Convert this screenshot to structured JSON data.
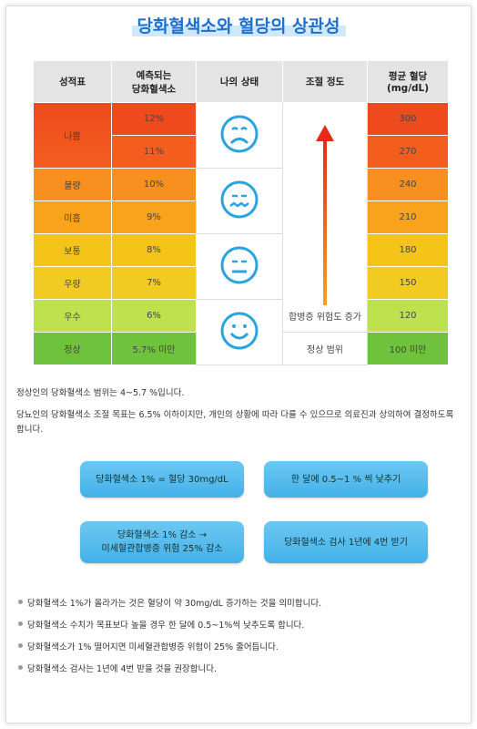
{
  "title": "당화혈색소와 혈당의 상관성",
  "table": {
    "headers": [
      "성적표",
      "예측되는\n당화혈색소",
      "나의 상태",
      "조절 정도",
      "평균 혈당\n(mg/dL)"
    ],
    "grades": [
      "나쁨",
      "불량",
      "미흡",
      "보통",
      "우량",
      "우수",
      "정상"
    ],
    "hba1c": [
      "12%",
      "11%",
      "10%",
      "9%",
      "8%",
      "7%",
      "6%",
      "5.7% 미만"
    ],
    "control": [
      "합병증 위험도 증가",
      "정상 범위"
    ],
    "glucose": [
      "300",
      "270",
      "240",
      "210",
      "180",
      "150",
      "120",
      "100 미만"
    ]
  },
  "notes": [
    "정상인의 당화혈색소 범위는 4~5.7 %입니다.",
    "당뇨인의 당화혈색소 조절 목표는 6.5% 이하이지만, 개인의 상황에 따라 다를 수 있으므로 의료진과 상의하여 결정하도록 합니다."
  ],
  "boxes": [
    "당화혈색소 1% = 혈당 30mg/dL",
    "한 달에 0.5~1 % 씩 낮추기",
    "당화혈색소 1% 감소 →\n미세혈관합병증 위험 25% 감소",
    "당화혈색소 검사 1년에 4번 받기"
  ],
  "bullets": [
    "당화혈색소 1%가 올라가는 것은  혈당이 약 30mg/dL 증가하는 것을 의미합니다.",
    "당화혈색소 수치가 목표보다 높을 경우 한 달에 0.5~1%씩 낮추도록 합니다.",
    "당화혈색소가 1% 떨어지면 미세혈관합병증 위험이 25% 줄어듭니다.",
    "당화혈색소 검사는 1년에 4번 받을 것을 권장합니다."
  ]
}
